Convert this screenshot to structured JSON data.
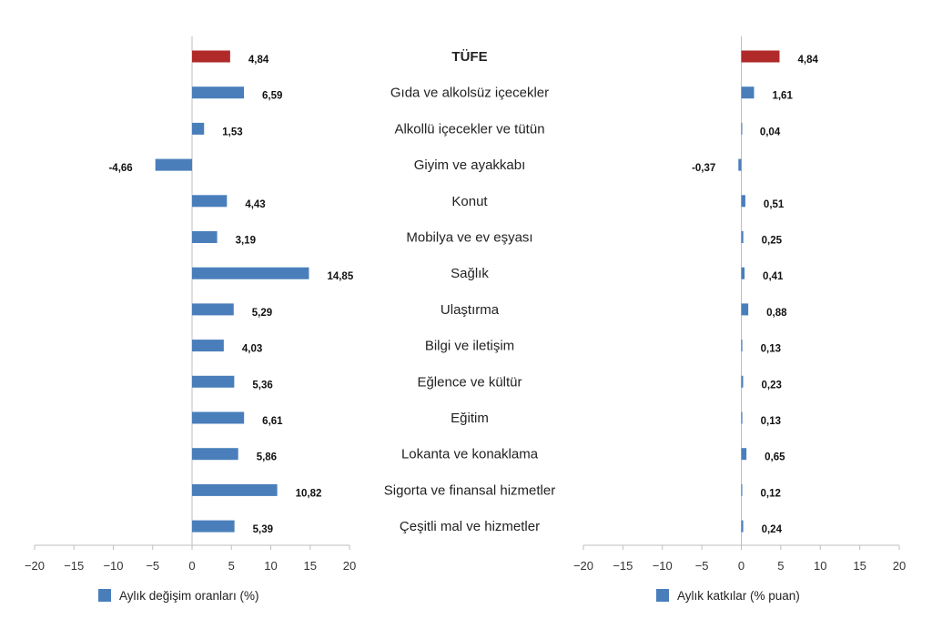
{
  "chart_data": {
    "type": "bar",
    "orientation": "horizontal",
    "categories": [
      "TÜFE",
      "Gıda ve alkolsüz içecekler",
      "Alkollü içecekler ve tütün",
      "Giyim ve ayakkabı",
      "Konut",
      "Mobilya ve ev eşyası",
      "Sağlık",
      "Ulaştırma",
      "Bilgi ve iletişim",
      "Eğlence ve kültür",
      "Eğitim",
      "Lokanta ve konaklama",
      "Sigorta ve finansal hizmetler",
      "Çeşitli mal ve hizmetler"
    ],
    "highlight_category": "TÜFE",
    "series": [
      {
        "name": "Aylık değişim oranları (%)",
        "values": [
          4.84,
          6.59,
          1.53,
          -4.66,
          4.43,
          3.19,
          14.85,
          5.29,
          4.03,
          5.36,
          6.61,
          5.86,
          10.82,
          5.39
        ],
        "value_labels": [
          "4,84",
          "6,59",
          "1,53",
          "-4,66",
          "4,43",
          "3,19",
          "14,85",
          "5,29",
          "4,03",
          "5,36",
          "6,61",
          "5,86",
          "10,82",
          "5,39"
        ]
      },
      {
        "name": "Aylık katkılar (% puan)",
        "values": [
          4.84,
          1.61,
          0.04,
          -0.37,
          0.51,
          0.25,
          0.41,
          0.88,
          0.13,
          0.23,
          0.13,
          0.65,
          0.12,
          0.24
        ],
        "value_labels": [
          "4,84",
          "1,61",
          "0,04",
          "-0,37",
          "0,51",
          "0,25",
          "0,41",
          "0,88",
          "0,13",
          "0,23",
          "0,13",
          "0,65",
          "0,12",
          "0,24"
        ]
      }
    ],
    "xlim": [
      -20,
      20
    ],
    "xticks": [
      -20,
      -15,
      -10,
      -5,
      0,
      5,
      10,
      15,
      20
    ],
    "xtick_labels": [
      "−20",
      "−15",
      "−10",
      "−5",
      "0",
      "5",
      "10",
      "15",
      "20"
    ],
    "title": "",
    "xlabel": "",
    "ylabel": "",
    "grid": false,
    "legend_placement": "bottom"
  },
  "colors": {
    "bar": "#4a7ebb",
    "highlight": "#b02a2a",
    "axis": "#bdbdbd",
    "text": "#222222"
  }
}
